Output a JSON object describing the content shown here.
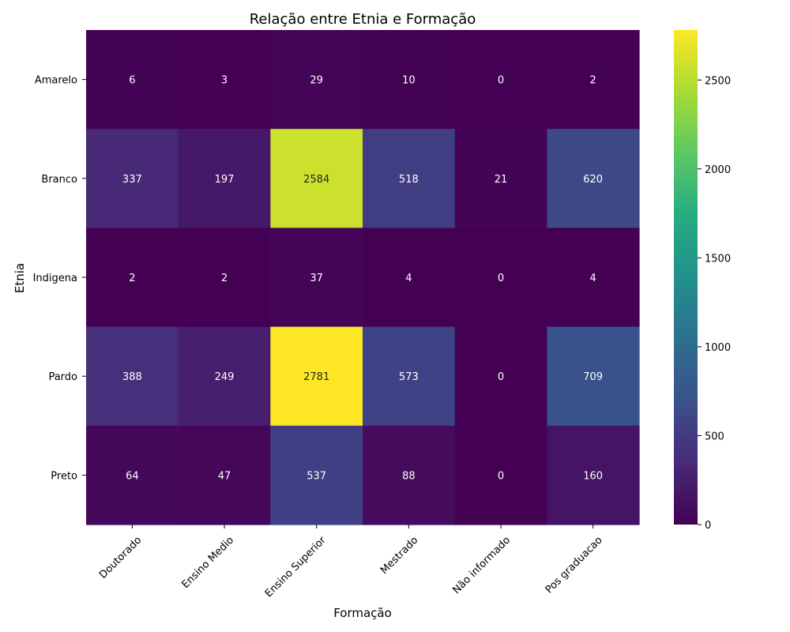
{
  "chart_data": {
    "type": "heatmap",
    "title": "Relação entre Etnia e Formação",
    "xlabel": "Formação",
    "ylabel": "Etnia",
    "x_categories": [
      "Doutorado",
      "Ensino Medio",
      "Ensino Superior",
      "Mestrado",
      "Não informado",
      "Pos graduacao"
    ],
    "y_categories": [
      "Amarelo",
      "Branco",
      "Indigena",
      "Pardo",
      "Preto"
    ],
    "values": [
      [
        6,
        3,
        29,
        10,
        0,
        2
      ],
      [
        337,
        197,
        2584,
        518,
        21,
        620
      ],
      [
        2,
        2,
        37,
        4,
        0,
        4
      ],
      [
        388,
        249,
        2781,
        573,
        0,
        709
      ],
      [
        64,
        47,
        537,
        88,
        0,
        160
      ]
    ],
    "colorbar": {
      "colormap": "viridis",
      "range": [
        0,
        2781
      ],
      "ticks": [
        0,
        500,
        1000,
        1500,
        2000,
        2500
      ]
    }
  }
}
